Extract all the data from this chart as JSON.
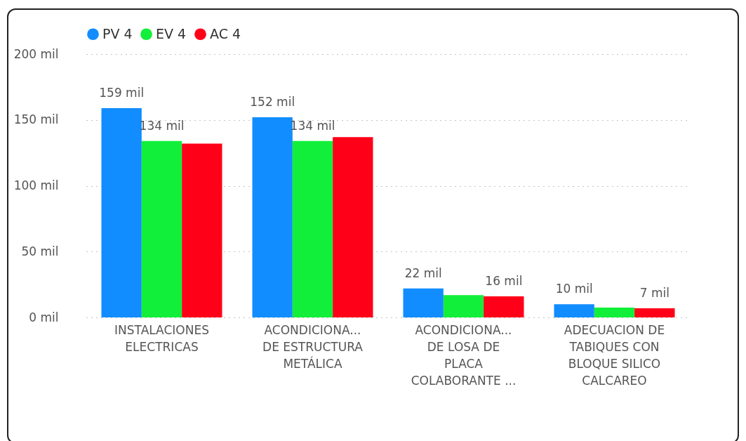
{
  "chart_data": {
    "type": "bar",
    "categories": [
      "INSTALACIONES\nELECTRICAS",
      "ACONDICIONA...\nDE ESTRUCTURA\nMETÁLICA",
      "ACONDICIONA...\nDE LOSA DE\nPLACA\nCOLABORANTE ...",
      "ADECUACION DE\nTABIQUES CON\nBLOQUE SILICO\nCALCAREO"
    ],
    "series": [
      {
        "name": "PV 4",
        "color": "#118dff",
        "values": [
          159,
          152,
          22,
          10
        ],
        "value_labels": [
          "159 mil",
          "152 mil",
          "22 mil",
          "10 mil"
        ]
      },
      {
        "name": "EV 4",
        "color": "#12ef3a",
        "values": [
          134,
          134,
          17,
          7.5
        ],
        "value_labels": [
          "134 mil",
          "134 mil",
          null,
          null
        ]
      },
      {
        "name": "AC 4",
        "color": "#ff0019",
        "values": [
          132,
          137,
          16,
          7
        ],
        "value_labels": [
          null,
          null,
          "16 mil",
          "7 mil"
        ]
      }
    ],
    "ylim": [
      0,
      200
    ],
    "yticks": [
      {
        "value": 0,
        "label": "0 mil"
      },
      {
        "value": 50,
        "label": "50 mil"
      },
      {
        "value": 100,
        "label": "100 mil"
      },
      {
        "value": 150,
        "label": "150 mil"
      },
      {
        "value": 200,
        "label": "200 mil"
      }
    ],
    "grid": "y",
    "legend": "top left"
  }
}
